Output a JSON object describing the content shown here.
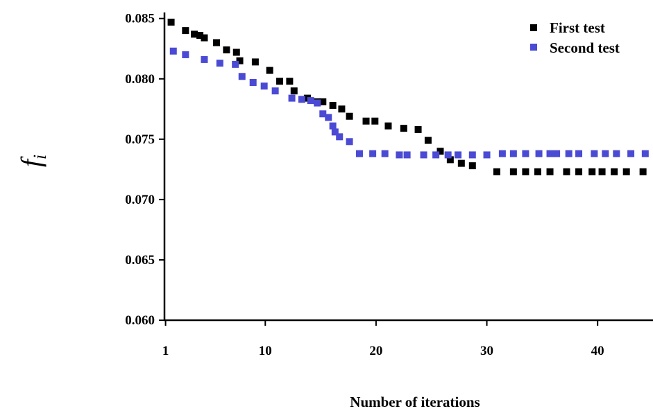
{
  "chart_data": {
    "type": "scatter",
    "title": "",
    "xlabel": "Number of iterations",
    "ylabel": "f_i",
    "ylabel_main": "f",
    "ylabel_sub": "i",
    "xlim": [
      0.9,
      45
    ],
    "ylim": [
      0.06,
      0.0855
    ],
    "xticks": [
      1,
      10,
      20,
      30,
      40
    ],
    "yticks": [
      0.06,
      0.065,
      0.07,
      0.075,
      0.08,
      0.085
    ],
    "ytick_labels": [
      "0.060",
      "0.065",
      "0.070",
      "0.075",
      "0.080",
      "0.085"
    ],
    "grid": false,
    "legend_position": "top-right",
    "series": [
      {
        "name": "First test",
        "color": "#000000",
        "x": [
          1.5,
          2.8,
          3.6,
          4.1,
          4.5,
          5.6,
          6.5,
          7.4,
          7.7,
          9.1,
          10.4,
          11.3,
          12.2,
          12.6,
          13.8,
          14.7,
          15.2,
          16.1,
          16.9,
          17.6,
          19.1,
          19.9,
          21.1,
          22.5,
          23.8,
          24.7,
          25.8,
          26.7,
          27.7,
          28.7,
          30.9,
          32.4,
          33.5,
          34.6,
          35.7,
          37.2,
          38.3,
          39.5,
          40.4,
          41.5,
          42.6,
          44.1
        ],
        "y": [
          0.0847,
          0.084,
          0.0837,
          0.0836,
          0.0834,
          0.083,
          0.0824,
          0.0822,
          0.0815,
          0.0814,
          0.0807,
          0.0798,
          0.0798,
          0.079,
          0.0784,
          0.0781,
          0.0781,
          0.0778,
          0.0775,
          0.0769,
          0.0765,
          0.0765,
          0.0761,
          0.0759,
          0.0758,
          0.0749,
          0.074,
          0.0733,
          0.073,
          0.0728,
          0.0723,
          0.0723,
          0.0723,
          0.0723,
          0.0723,
          0.0723,
          0.0723,
          0.0723,
          0.0723,
          0.0723,
          0.0723,
          0.0723
        ]
      },
      {
        "name": "Second test",
        "color": "#4a4ad4",
        "x": [
          1.7,
          2.8,
          4.5,
          5.9,
          7.3,
          7.9,
          8.9,
          9.9,
          10.9,
          12.4,
          13.3,
          14.1,
          14.7,
          15.2,
          15.7,
          16.1,
          16.3,
          16.7,
          17.6,
          18.5,
          19.7,
          20.8,
          22.1,
          22.8,
          24.3,
          25.4,
          26.5,
          27.4,
          28.7,
          30.0,
          31.4,
          32.4,
          33.5,
          34.7,
          35.7,
          36.3,
          37.4,
          38.3,
          39.7,
          40.7,
          41.7,
          43.0,
          44.3
        ],
        "y": [
          0.0823,
          0.082,
          0.0816,
          0.0813,
          0.0812,
          0.0802,
          0.0797,
          0.0794,
          0.079,
          0.0784,
          0.0783,
          0.0782,
          0.078,
          0.0771,
          0.0768,
          0.0761,
          0.0756,
          0.0752,
          0.0748,
          0.0738,
          0.0738,
          0.0738,
          0.0737,
          0.0737,
          0.0737,
          0.0737,
          0.0737,
          0.0737,
          0.0737,
          0.0737,
          0.0738,
          0.0738,
          0.0738,
          0.0738,
          0.0738,
          0.0738,
          0.0738,
          0.0738,
          0.0738,
          0.0738,
          0.0738,
          0.0738,
          0.0738
        ]
      }
    ]
  }
}
